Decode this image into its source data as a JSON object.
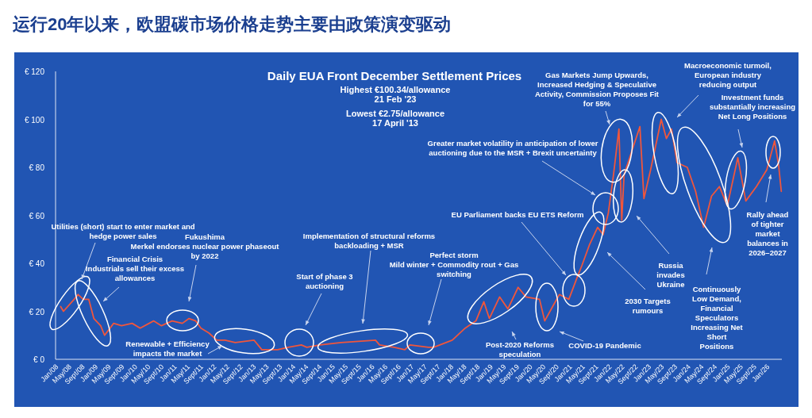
{
  "chart_data": {
    "type": "line",
    "title": "运行20年以来，欧盟碳市场价格走势主要由政策演变驱动",
    "subtitle": "Daily EUA Front December Settlement Prices",
    "annotations": [
      "Highest €100.34/allowance\n21 Feb '23",
      "Lowest €2.75/allowance\n17 April '13",
      "Utilities (short) start to enter market and\nhedge power sales",
      "Financial Crisis\nIndustrials sell their excess\nallowances",
      "Fukushima\nMerkel endorses nuclear power phaseout\nby 2022",
      "Renewable + Efficiency\nimpacts the market",
      "Start of phase 3\nauctioning",
      "Implementation of structural reforms\nbackloading + MSR",
      "Perfect storm\nMild winter + Commodity rout + Gas\nswitching",
      "Post-2020 Reforms\nspeculation",
      "COVID-19 Pandemic",
      "EU Parliament backs EU ETS Reform",
      "2030 Targets\nrumours",
      "Greater market volatility in anticipation of lower\nauctioning due to the MSR + Brexit uncertainty",
      "Gas Markets Jump Upwards,\nIncreased Hedging & Speculative\nActivity, Commission Proposes Fit\nfor 55%",
      "Russia\ninvades\nUkraine",
      "Macroeconomic turmoil,\nEuropean industry\nreducing output",
      "Investment funds\nsubstantially increasing\nNet Long Positions",
      "Continuously\nLow Demand,\nFinancial\nSpeculators\nIncreasing  Net\nShort\nPositions",
      "Rally ahead\nof tighter\nmarket\nbalances in\n2026–2027"
    ],
    "x": [
      "2008-02-17",
      "2008-03-14",
      "2008-06-21",
      "2008-07-27",
      "2008-09-13",
      "2008-11-03",
      "2008-12-20",
      "2009-02-21",
      "2009-03-29",
      "2009-06-21",
      "2009-09-02",
      "2009-12-09",
      "2010-02-21",
      "2010-06-25",
      "2010-09-06",
      "2010-12-13",
      "2011-03-18",
      "2011-05-19",
      "2011-07-20",
      "2011-09-06",
      "2011-11-18",
      "2012-01-30",
      "2012-04-16",
      "2012-07-19",
      "2013-01-08",
      "2013-03-22",
      "2013-06-03",
      "2013-08-15",
      "2013-11-21",
      "2014-03-22",
      "2014-05-12",
      "2014-09-09",
      "2015-03-25",
      "2016-02-06",
      "2016-03-14",
      "2016-07-27",
      "2016-11-03",
      "2016-12-20",
      "2017-06-10",
      "2017-07-27",
      "2018-01-15",
      "2018-05-15",
      "2018-08-22",
      "2018-11-03",
      "2018-12-24",
      "2019-03-29",
      "2019-06-14",
      "2019-09-16",
      "2019-11-28",
      "2020-04-01",
      "2020-05-19",
      "2020-07-31",
      "2020-10-01",
      "2020-12-28",
      "2021-03-22",
      "2021-04-27",
      "2021-07-09",
      "2021-09-20",
      "2021-11-10",
      "2021-12-28",
      "2022-02-14",
      "2022-04-05",
      "2022-05-01",
      "2022-05-23",
      "2022-08-04",
      "2022-10-16",
      "2022-11-22",
      "2023-01-23",
      "2023-05-01",
      "2023-06-18",
      "2023-08-04",
      "2023-09-24",
      "2023-12-28",
      "2024-03-14",
      "2024-05-27",
      "2024-08-08",
      "2024-10-20",
      "2025-01-01",
      "2025-04-08",
      "2025-06-21",
      "2025-09-27",
      "2026-01-01",
      "2026-03-14",
      "2026-04-20",
      "2026-05-15"
    ],
    "series": [
      {
        "color": "#f0563c",
        "values": [
          22,
          20,
          25,
          27,
          25,
          25,
          17,
          14,
          10,
          15,
          14,
          15,
          13,
          16,
          14,
          16,
          15,
          17,
          16,
          13,
          11,
          8,
          8,
          7,
          8,
          4,
          4,
          4,
          5,
          6,
          5,
          6,
          7,
          8,
          6,
          5,
          4,
          6,
          5,
          5,
          8,
          13,
          16,
          24,
          17,
          26,
          21,
          30,
          26,
          25,
          16,
          22,
          27,
          25,
          35,
          39,
          48,
          55,
          52,
          61,
          77,
          96,
          58,
          77,
          87,
          97,
          67,
          79,
          100,
          92,
          96,
          82,
          80,
          70,
          55,
          68,
          72,
          64,
          84,
          66,
          72,
          79,
          91,
          81,
          70
        ]
      }
    ],
    "xlim": [
      "2008-01-01",
      "2026-05-20"
    ],
    "xticks": [
      {
        "value": "2008-01-01",
        "label": "Jan/08"
      },
      {
        "value": "2008-05-01",
        "label": "May/08"
      },
      {
        "value": "2008-09-01",
        "label": "Sept/08"
      },
      {
        "value": "2009-01-01",
        "label": "Jan/09"
      },
      {
        "value": "2009-05-01",
        "label": "May/09"
      },
      {
        "value": "2009-09-01",
        "label": "Sept/09"
      },
      {
        "value": "2010-01-01",
        "label": "Jan/10"
      },
      {
        "value": "2010-05-01",
        "label": "May/10"
      },
      {
        "value": "2010-09-01",
        "label": "Sept/10"
      },
      {
        "value": "2011-01-01",
        "label": "Jan/11"
      },
      {
        "value": "2011-05-01",
        "label": "May/11"
      },
      {
        "value": "2011-09-01",
        "label": "Sept/11"
      },
      {
        "value": "2012-01-01",
        "label": "Jan/12"
      },
      {
        "value": "2012-05-01",
        "label": "May/12"
      },
      {
        "value": "2012-09-01",
        "label": "Sept/12"
      },
      {
        "value": "2013-01-01",
        "label": "Jan/13"
      },
      {
        "value": "2013-05-01",
        "label": "May/13"
      },
      {
        "value": "2013-09-01",
        "label": "Sept/13"
      },
      {
        "value": "2014-01-01",
        "label": "Jan/14"
      },
      {
        "value": "2014-05-01",
        "label": "May/14"
      },
      {
        "value": "2014-09-01",
        "label": "Sept/14"
      },
      {
        "value": "2015-01-01",
        "label": "Jan/15"
      },
      {
        "value": "2015-05-01",
        "label": "May/15"
      },
      {
        "value": "2015-09-01",
        "label": "Sept/15"
      },
      {
        "value": "2016-01-01",
        "label": "Jan/16"
      },
      {
        "value": "2016-05-01",
        "label": "May/16"
      },
      {
        "value": "2016-09-01",
        "label": "Sept/16"
      },
      {
        "value": "2017-01-01",
        "label": "Jan/17"
      },
      {
        "value": "2017-05-01",
        "label": "May/17"
      },
      {
        "value": "2017-09-01",
        "label": "Sept/17"
      },
      {
        "value": "2018-01-01",
        "label": "Jan/18"
      },
      {
        "value": "2018-05-01",
        "label": "May/18"
      },
      {
        "value": "2018-09-01",
        "label": "Sept/18"
      },
      {
        "value": "2019-01-01",
        "label": "Jan/19"
      },
      {
        "value": "2019-05-01",
        "label": "May/19"
      },
      {
        "value": "2019-09-01",
        "label": "Sept/19"
      },
      {
        "value": "2020-01-01",
        "label": "Jan/20"
      },
      {
        "value": "2020-05-01",
        "label": "May/20"
      },
      {
        "value": "2020-09-01",
        "label": "Sept/20"
      },
      {
        "value": "2021-01-01",
        "label": "Jan/21"
      },
      {
        "value": "2021-05-01",
        "label": "May/21"
      },
      {
        "value": "2021-09-01",
        "label": "Sept/21"
      },
      {
        "value": "2022-01-01",
        "label": "Jan/22"
      },
      {
        "value": "2022-05-01",
        "label": "May/22"
      },
      {
        "value": "2022-09-01",
        "label": "Sept/22"
      },
      {
        "value": "2023-01-01",
        "label": "Jan/23"
      },
      {
        "value": "2023-05-01",
        "label": "May/23"
      },
      {
        "value": "2023-09-01",
        "label": "Sept/23"
      },
      {
        "value": "2024-01-01",
        "label": "Jan/24"
      },
      {
        "value": "2024-05-01",
        "label": "May/24"
      },
      {
        "value": "2024-09-01",
        "label": "Sept/24"
      },
      {
        "value": "2025-01-01",
        "label": "Jan/25"
      },
      {
        "value": "2025-05-01",
        "label": "May/25"
      },
      {
        "value": "2025-09-01",
        "label": "Sept/25"
      },
      {
        "value": "2026-01-01",
        "label": "Jan/26"
      }
    ],
    "ylim": [
      0,
      120
    ],
    "yticks": [
      {
        "value": 0,
        "label": "€ 0"
      },
      {
        "value": 20,
        "label": "€ 20"
      },
      {
        "value": 40,
        "label": "€ 40"
      },
      {
        "value": 60,
        "label": "€ 60"
      },
      {
        "value": 80,
        "label": "€ 80"
      },
      {
        "value": 100,
        "label": "€ 100"
      },
      {
        "value": 120,
        "label": "€ 120"
      }
    ],
    "grid": false
  }
}
